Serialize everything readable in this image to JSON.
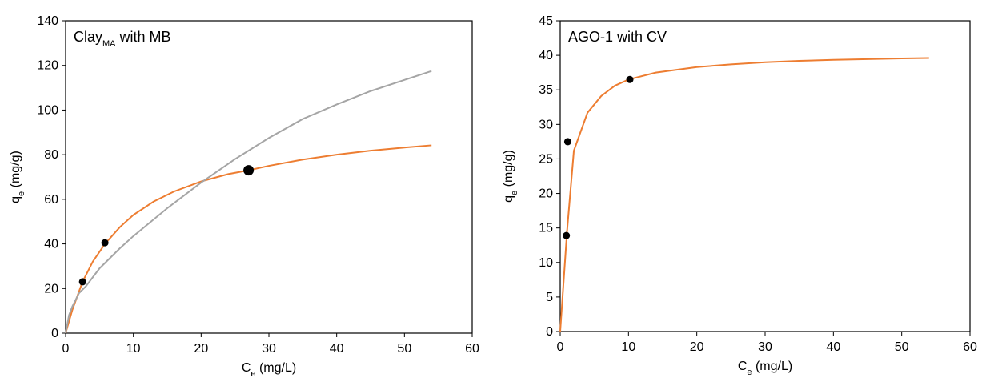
{
  "chart_data": [
    {
      "type": "scatter",
      "title": "Clay",
      "title_sub": "MA",
      "title_rest": " with MB",
      "xlabel": "C",
      "xlabel_sub": "e",
      "xlabel_rest": " (mg/L)",
      "ylabel": "q",
      "ylabel_sub": "e",
      "ylabel_rest": " (mg/g)",
      "xlim": [
        0,
        60
      ],
      "ylim": [
        0,
        140
      ],
      "xticks": [
        0,
        10,
        20,
        30,
        40,
        50,
        60
      ],
      "yticks": [
        0,
        20,
        40,
        60,
        80,
        100,
        120,
        140
      ],
      "grid": false,
      "points": [
        {
          "x": 2.5,
          "y": 23,
          "big": false
        },
        {
          "x": 5.8,
          "y": 40.5,
          "big": false
        },
        {
          "x": 27,
          "y": 73,
          "big": true
        }
      ],
      "series": [
        {
          "color": "#ED7D31",
          "x": [
            0,
            1,
            2.5,
            4,
            5.8,
            8,
            10,
            13,
            16,
            20,
            24,
            27,
            30,
            35,
            40,
            45,
            50,
            54
          ],
          "y": [
            0,
            10.5,
            23,
            32,
            40,
            47.5,
            53,
            59,
            63.5,
            68,
            71.3,
            73,
            75,
            77.8,
            80,
            81.8,
            83.2,
            84.2
          ]
        },
        {
          "color": "#A5A5A5",
          "x": [
            0,
            0.5,
            1,
            2,
            3,
            5,
            8,
            10,
            15,
            20,
            25,
            30,
            35,
            40,
            45,
            50,
            54
          ],
          "y": [
            0,
            8,
            12,
            18,
            21,
            29,
            38,
            43.5,
            56,
            67.5,
            78,
            87.5,
            96,
            102.5,
            108.5,
            113.5,
            117.5
          ]
        }
      ]
    },
    {
      "type": "scatter",
      "title": "AGO-1 with CV",
      "xlabel": "C",
      "xlabel_sub": "e",
      "xlabel_rest": " (mg/L)",
      "ylabel": "q",
      "ylabel_sub": "e",
      "ylabel_rest": " (mg/g)",
      "xlim": [
        0,
        60
      ],
      "ylim": [
        0,
        45
      ],
      "xticks": [
        0,
        10,
        20,
        30,
        40,
        50,
        60
      ],
      "yticks": [
        0,
        5,
        10,
        15,
        20,
        25,
        30,
        35,
        40,
        45
      ],
      "grid": false,
      "points": [
        {
          "x": 0.9,
          "y": 13.9,
          "big": false
        },
        {
          "x": 1.1,
          "y": 27.5,
          "big": false
        },
        {
          "x": 10.2,
          "y": 36.5,
          "big": false
        }
      ],
      "series": [
        {
          "color": "#ED7D31",
          "x": [
            0,
            1,
            2,
            4,
            6,
            8,
            10,
            14,
            20,
            25,
            30,
            35,
            40,
            45,
            50,
            54
          ],
          "y": [
            0,
            14.5,
            26.2,
            31.7,
            34.1,
            35.6,
            36.5,
            37.5,
            38.3,
            38.7,
            39.0,
            39.2,
            39.35,
            39.45,
            39.55,
            39.6
          ]
        }
      ]
    }
  ]
}
